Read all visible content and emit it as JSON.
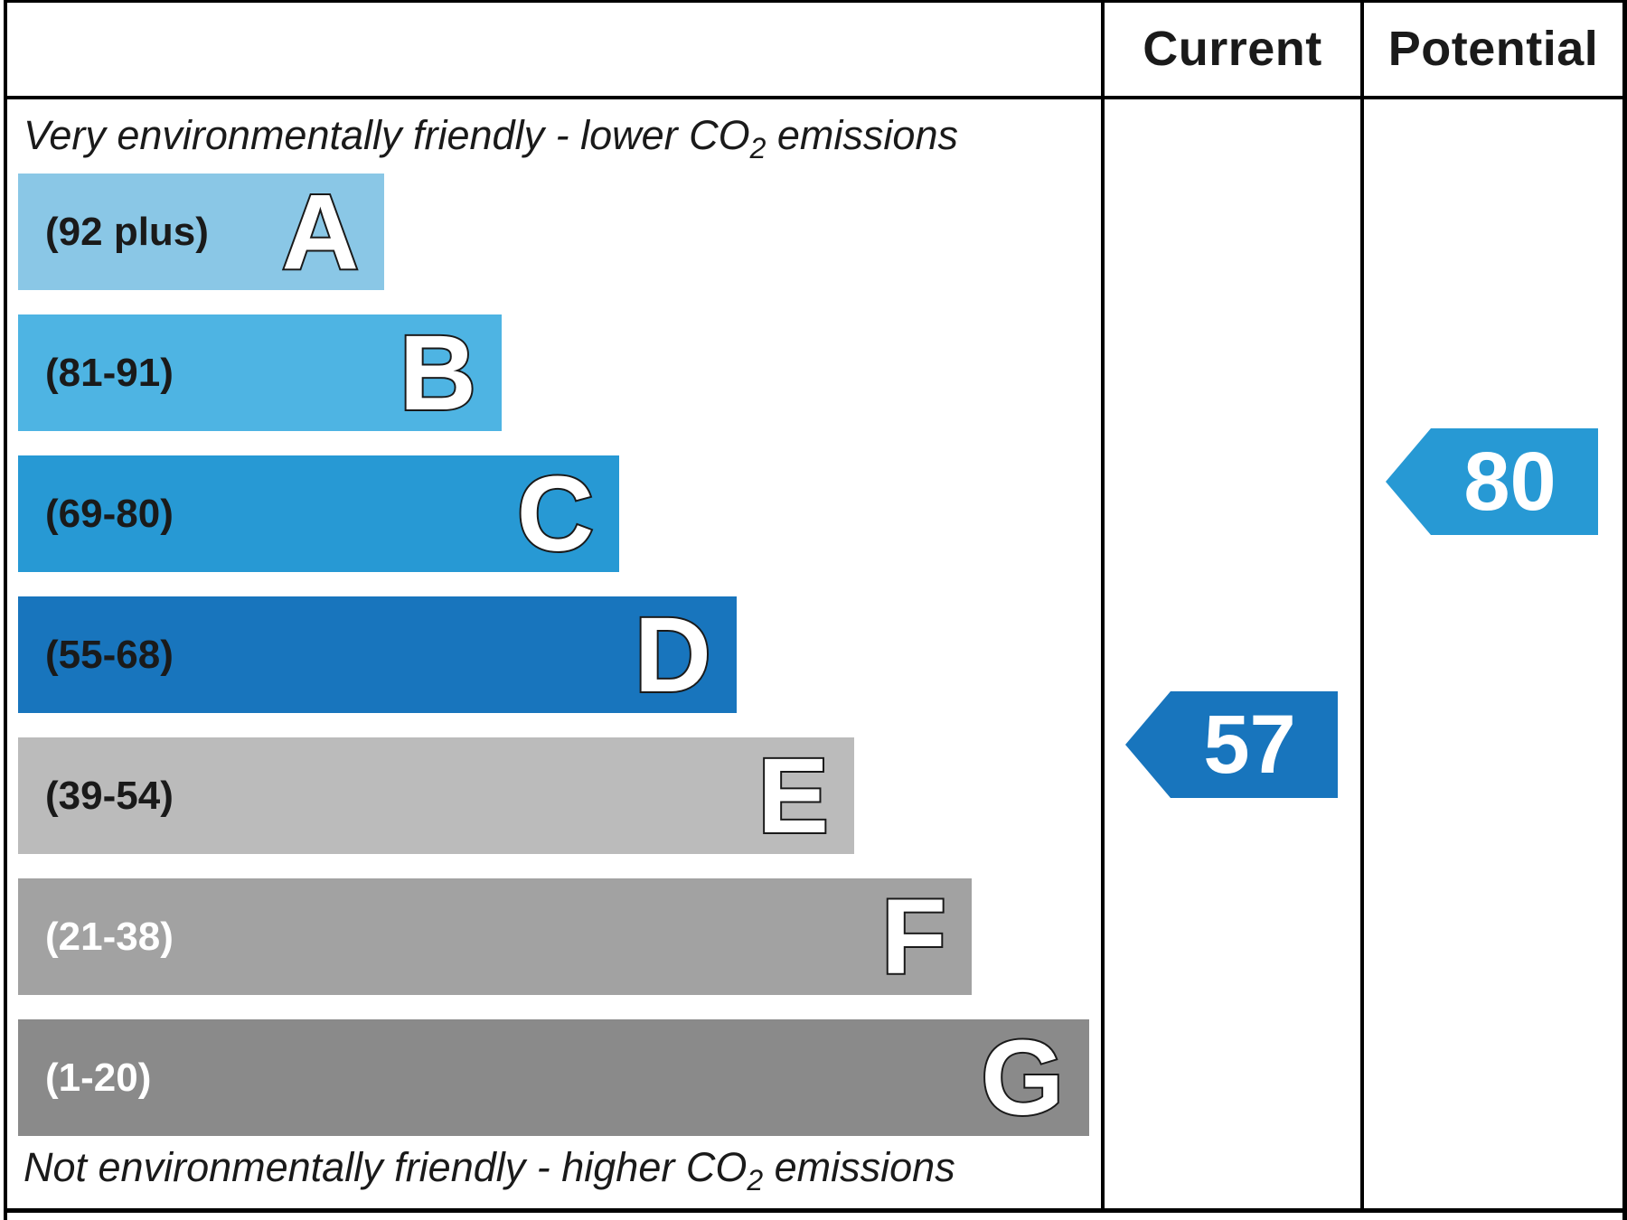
{
  "chart_data": {
    "type": "bar",
    "columns": [
      "Current",
      "Potential"
    ],
    "top_caption": "Very environmentally friendly - lower CO",
    "top_caption_tail": " emissions",
    "bottom_caption": "Not environmentally friendly - higher CO",
    "bottom_caption_tail": " emissions",
    "subscript": "2",
    "bands": [
      {
        "letter": "A",
        "range": "(92 plus)",
        "min": 92,
        "max": 100,
        "color": "#8ac7e6",
        "text_color": "#1a1a1a"
      },
      {
        "letter": "B",
        "range": "(81-91)",
        "min": 81,
        "max": 91,
        "color": "#4eb4e3",
        "text_color": "#1a1a1a"
      },
      {
        "letter": "C",
        "range": "(69-80)",
        "min": 69,
        "max": 80,
        "color": "#2799d4",
        "text_color": "#1a1a1a"
      },
      {
        "letter": "D",
        "range": "(55-68)",
        "min": 55,
        "max": 68,
        "color": "#1875bd",
        "text_color": "#1a1a1a"
      },
      {
        "letter": "E",
        "range": "(39-54)",
        "min": 39,
        "max": 54,
        "color": "#bbbbbb",
        "text_color": "#1a1a1a"
      },
      {
        "letter": "F",
        "range": "(21-38)",
        "min": 21,
        "max": 38,
        "color": "#a2a2a2",
        "text_color": "#ffffff"
      },
      {
        "letter": "G",
        "range": "(1-20)",
        "min": 1,
        "max": 20,
        "color": "#8a8a8a",
        "text_color": "#ffffff"
      }
    ],
    "ratings": {
      "current": {
        "value": 57,
        "label": "57",
        "band": "D",
        "color": "#1875bd"
      },
      "potential": {
        "value": 80,
        "label": "80",
        "band": "C",
        "color": "#2799d4"
      }
    }
  }
}
